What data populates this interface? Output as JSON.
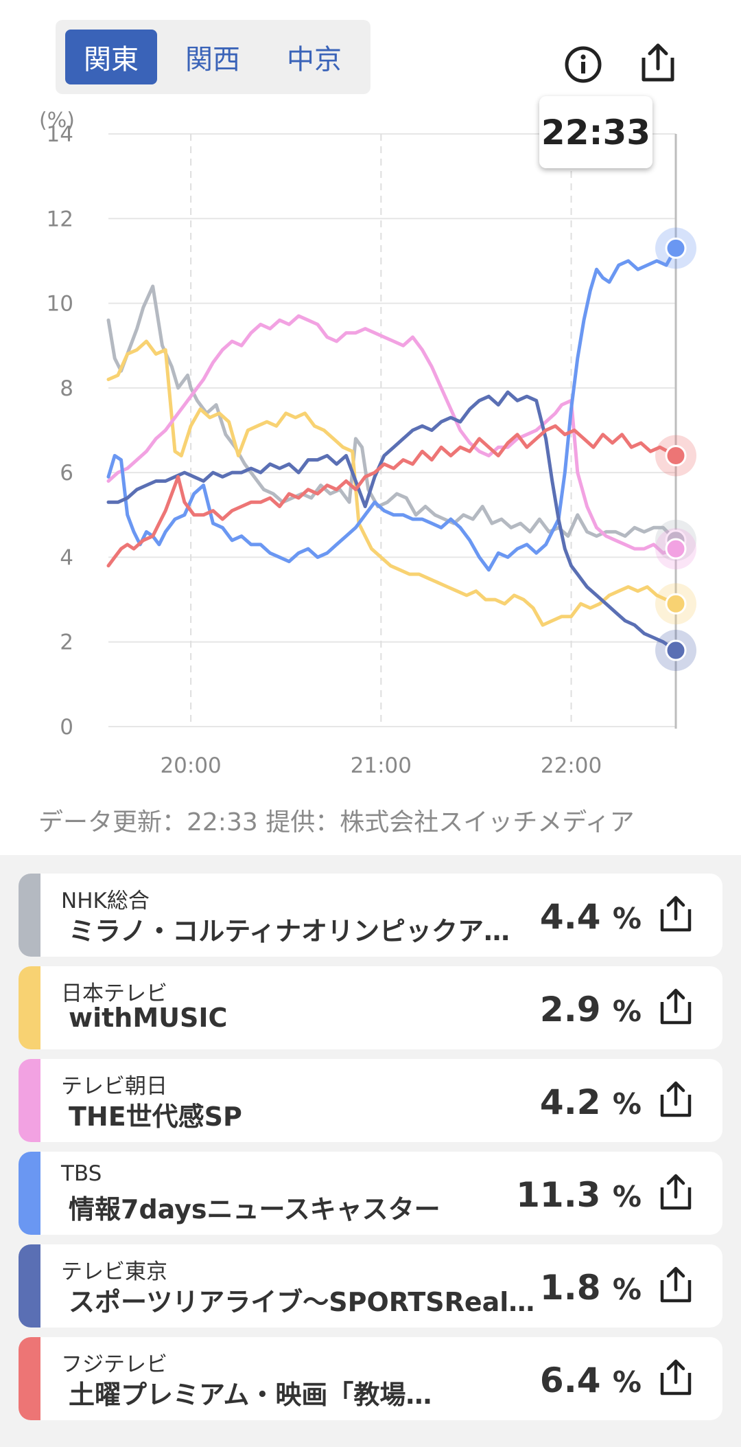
{
  "region_tabs": [
    {
      "label": "関東",
      "active": true
    },
    {
      "label": "関西",
      "active": false
    },
    {
      "label": "中京",
      "active": false
    }
  ],
  "header_icons": [
    "info-icon",
    "share-icon"
  ],
  "tooltip_time": "22:33",
  "credit": "データ更新：22:33  提供：株式会社スイッチメディア",
  "chart_data": {
    "type": "line",
    "y_unit_label": "(%)",
    "ylim": [
      0,
      14
    ],
    "y_ticks": [
      "0",
      "2",
      "4",
      "6",
      "8",
      "10",
      "12",
      "14"
    ],
    "x_ticks": [
      {
        "label": "20:00",
        "minute": 0
      },
      {
        "label": "21:00",
        "minute": 60
      },
      {
        "label": "22:00",
        "minute": 120
      }
    ],
    "x_range_minutes": [
      -26,
      153
    ],
    "cursor_minute": 153,
    "grid": true,
    "series": [
      {
        "name": "NHK総合",
        "color": "#b4b9c1",
        "x": [
          -26,
          -24,
          -22,
          -20,
          -17,
          -15,
          -12,
          -9,
          -6,
          -4,
          -1,
          0,
          2,
          5,
          8,
          11,
          14,
          17,
          20,
          23,
          26,
          29,
          32,
          35,
          38,
          41,
          44,
          47,
          50,
          52,
          54,
          56,
          59,
          62,
          65,
          68,
          71,
          74,
          77,
          80,
          83,
          86,
          89,
          92,
          95,
          98,
          101,
          104,
          107,
          110,
          113,
          116,
          119,
          122,
          125,
          128,
          131,
          134,
          137,
          140,
          143,
          146,
          149,
          153
        ],
        "y": [
          9.6,
          8.7,
          8.4,
          8.8,
          9.4,
          9.9,
          10.4,
          9.0,
          8.5,
          8.0,
          8.3,
          8.0,
          7.7,
          7.4,
          7.6,
          6.9,
          6.6,
          6.2,
          5.9,
          5.6,
          5.5,
          5.3,
          5.4,
          5.5,
          5.4,
          5.7,
          5.5,
          5.6,
          5.3,
          6.8,
          6.6,
          5.6,
          5.2,
          5.3,
          5.5,
          5.4,
          5.0,
          5.2,
          5.0,
          4.9,
          4.8,
          5.0,
          4.9,
          5.2,
          4.8,
          4.9,
          4.7,
          4.8,
          4.6,
          4.9,
          4.6,
          4.7,
          4.5,
          5.0,
          4.6,
          4.5,
          4.6,
          4.6,
          4.5,
          4.7,
          4.6,
          4.7,
          4.7,
          4.4
        ]
      },
      {
        "name": "日本テレビ",
        "color": "#f8d272",
        "x": [
          -26,
          -23,
          -20,
          -17,
          -14,
          -11,
          -8,
          -6,
          -5,
          -3,
          0,
          3,
          6,
          9,
          12,
          15,
          18,
          21,
          24,
          27,
          30,
          33,
          36,
          39,
          42,
          45,
          48,
          51,
          53,
          55,
          57,
          60,
          63,
          66,
          69,
          72,
          75,
          78,
          81,
          84,
          87,
          90,
          93,
          96,
          99,
          102,
          105,
          108,
          111,
          114,
          117,
          120,
          123,
          126,
          129,
          132,
          135,
          138,
          141,
          144,
          147,
          150,
          153
        ],
        "y": [
          8.2,
          8.3,
          8.8,
          8.9,
          9.1,
          8.8,
          8.9,
          7.3,
          6.5,
          6.4,
          7.1,
          7.5,
          7.3,
          7.4,
          7.2,
          6.4,
          7.0,
          7.1,
          7.2,
          7.1,
          7.4,
          7.3,
          7.4,
          7.1,
          7.0,
          6.8,
          6.6,
          6.5,
          4.8,
          4.5,
          4.2,
          4.0,
          3.8,
          3.7,
          3.6,
          3.6,
          3.5,
          3.4,
          3.3,
          3.2,
          3.1,
          3.2,
          3.0,
          3.0,
          2.9,
          3.1,
          3.0,
          2.8,
          2.4,
          2.5,
          2.6,
          2.6,
          2.9,
          2.8,
          2.9,
          3.1,
          3.2,
          3.3,
          3.2,
          3.3,
          3.1,
          3.0,
          2.9
        ]
      },
      {
        "name": "テレビ朝日",
        "color": "#f2a2e2",
        "x": [
          -26,
          -23,
          -20,
          -17,
          -14,
          -11,
          -8,
          -5,
          -2,
          1,
          4,
          7,
          10,
          13,
          16,
          19,
          22,
          25,
          28,
          31,
          34,
          37,
          40,
          43,
          46,
          49,
          52,
          55,
          58,
          61,
          64,
          67,
          70,
          73,
          76,
          79,
          82,
          85,
          88,
          91,
          94,
          97,
          100,
          103,
          106,
          109,
          112,
          115,
          117,
          120,
          122,
          125,
          128,
          131,
          134,
          137,
          140,
          143,
          146,
          149,
          153
        ],
        "y": [
          5.8,
          6.0,
          6.1,
          6.3,
          6.5,
          6.8,
          7.0,
          7.3,
          7.6,
          7.9,
          8.2,
          8.6,
          8.9,
          9.1,
          9.0,
          9.3,
          9.5,
          9.4,
          9.6,
          9.5,
          9.7,
          9.6,
          9.5,
          9.2,
          9.1,
          9.3,
          9.3,
          9.4,
          9.3,
          9.2,
          9.1,
          9.0,
          9.2,
          8.9,
          8.5,
          8.0,
          7.5,
          7.0,
          6.7,
          6.5,
          6.4,
          6.6,
          6.6,
          6.8,
          6.9,
          7.0,
          7.2,
          7.4,
          7.6,
          7.7,
          6.0,
          5.2,
          4.7,
          4.5,
          4.4,
          4.3,
          4.2,
          4.2,
          4.3,
          4.1,
          4.2
        ]
      },
      {
        "name": "TBS",
        "color": "#6a97f2",
        "x": [
          -26,
          -24,
          -22,
          -20,
          -18,
          -16,
          -14,
          -12,
          -10,
          -8,
          -5,
          -2,
          1,
          4,
          7,
          10,
          13,
          16,
          19,
          22,
          25,
          28,
          31,
          34,
          37,
          40,
          43,
          46,
          49,
          52,
          55,
          58,
          61,
          64,
          67,
          70,
          73,
          76,
          79,
          82,
          85,
          88,
          91,
          94,
          97,
          100,
          103,
          106,
          109,
          112,
          114,
          116,
          118,
          120,
          122,
          124,
          126,
          128,
          130,
          132,
          135,
          138,
          141,
          144,
          147,
          150,
          153
        ],
        "y": [
          5.9,
          6.4,
          6.3,
          5.0,
          4.6,
          4.3,
          4.6,
          4.5,
          4.3,
          4.6,
          4.9,
          5.0,
          5.5,
          5.7,
          4.8,
          4.7,
          4.4,
          4.5,
          4.3,
          4.3,
          4.1,
          4.0,
          3.9,
          4.1,
          4.2,
          4.0,
          4.1,
          4.3,
          4.5,
          4.7,
          5.0,
          5.3,
          5.1,
          5.0,
          5.0,
          4.9,
          4.9,
          4.8,
          4.7,
          4.9,
          4.7,
          4.4,
          4.0,
          3.7,
          4.1,
          4.0,
          4.2,
          4.3,
          4.1,
          4.3,
          4.6,
          4.9,
          6.0,
          7.5,
          8.7,
          9.6,
          10.3,
          10.8,
          10.6,
          10.5,
          10.9,
          11.0,
          10.8,
          10.9,
          11.0,
          10.9,
          11.3
        ]
      },
      {
        "name": "テレビ東京",
        "color": "#5a6fb4",
        "x": [
          -26,
          -23,
          -20,
          -17,
          -14,
          -11,
          -8,
          -5,
          -2,
          1,
          4,
          7,
          10,
          13,
          16,
          19,
          22,
          25,
          28,
          31,
          34,
          37,
          40,
          43,
          46,
          49,
          52,
          55,
          58,
          61,
          64,
          67,
          70,
          73,
          76,
          79,
          82,
          85,
          88,
          91,
          94,
          97,
          100,
          103,
          106,
          109,
          110,
          112,
          114,
          116,
          118,
          120,
          122,
          125,
          128,
          131,
          134,
          137,
          140,
          143,
          146,
          149,
          153
        ],
        "y": [
          5.3,
          5.3,
          5.4,
          5.6,
          5.7,
          5.8,
          5.8,
          5.9,
          6.0,
          5.9,
          5.8,
          6.0,
          5.9,
          6.0,
          6.0,
          6.1,
          6.0,
          6.2,
          6.1,
          6.2,
          6.0,
          6.3,
          6.3,
          6.4,
          6.2,
          6.4,
          5.8,
          5.2,
          5.9,
          6.4,
          6.6,
          6.8,
          7.0,
          7.1,
          7.0,
          7.2,
          7.3,
          7.2,
          7.5,
          7.7,
          7.8,
          7.6,
          7.9,
          7.7,
          7.8,
          7.7,
          7.4,
          6.8,
          5.8,
          4.9,
          4.2,
          3.8,
          3.6,
          3.3,
          3.1,
          2.9,
          2.7,
          2.5,
          2.4,
          2.2,
          2.1,
          2.0,
          1.8
        ]
      },
      {
        "name": "フジテレビ",
        "color": "#ed7575",
        "x": [
          -26,
          -24,
          -22,
          -20,
          -18,
          -15,
          -12,
          -10,
          -8,
          -6,
          -4,
          -2,
          1,
          4,
          7,
          10,
          13,
          16,
          19,
          22,
          25,
          28,
          31,
          34,
          37,
          40,
          43,
          46,
          49,
          52,
          55,
          58,
          61,
          64,
          67,
          70,
          73,
          76,
          79,
          82,
          85,
          88,
          91,
          94,
          97,
          100,
          103,
          106,
          109,
          112,
          115,
          118,
          121,
          124,
          127,
          130,
          133,
          136,
          139,
          142,
          145,
          148,
          153
        ],
        "y": [
          3.8,
          4.0,
          4.2,
          4.3,
          4.2,
          4.4,
          4.5,
          4.8,
          5.1,
          5.5,
          5.9,
          5.3,
          5.0,
          5.0,
          5.1,
          4.9,
          5.1,
          5.2,
          5.3,
          5.3,
          5.4,
          5.2,
          5.5,
          5.4,
          5.6,
          5.5,
          5.7,
          5.6,
          5.8,
          5.6,
          5.9,
          6.0,
          6.2,
          6.1,
          6.3,
          6.2,
          6.5,
          6.3,
          6.6,
          6.4,
          6.6,
          6.5,
          6.8,
          6.6,
          6.4,
          6.7,
          6.9,
          6.6,
          6.8,
          7.0,
          7.1,
          6.9,
          7.0,
          6.8,
          6.6,
          6.9,
          6.7,
          6.9,
          6.6,
          6.7,
          6.5,
          6.6,
          6.4
        ]
      }
    ]
  },
  "channels": [
    {
      "channel": "NHK総合",
      "program": "ミラノ・コルティナオリンピックア…",
      "rating": "4.4",
      "unit": "%",
      "color": "#b4b9c1"
    },
    {
      "channel": "日本テレビ",
      "program": "withMUSIC",
      "rating": "2.9",
      "unit": "%",
      "color": "#f8d272"
    },
    {
      "channel": "テレビ朝日",
      "program": "THE世代感SP",
      "rating": "4.2",
      "unit": "%",
      "color": "#f2a2e2"
    },
    {
      "channel": "TBS",
      "program": "情報7daysニュースキャスター",
      "rating": "11.3",
      "unit": "%",
      "color": "#6a97f2"
    },
    {
      "channel": "テレビ東京",
      "program": "スポーツリアライブ～SPORTSReal…",
      "rating": "1.8",
      "unit": "%",
      "color": "#5a6fb4"
    },
    {
      "channel": "フジテレビ",
      "program": "土曜プレミアム・映画「教場…",
      "rating": "6.4",
      "unit": "%",
      "color": "#ed7575"
    }
  ]
}
